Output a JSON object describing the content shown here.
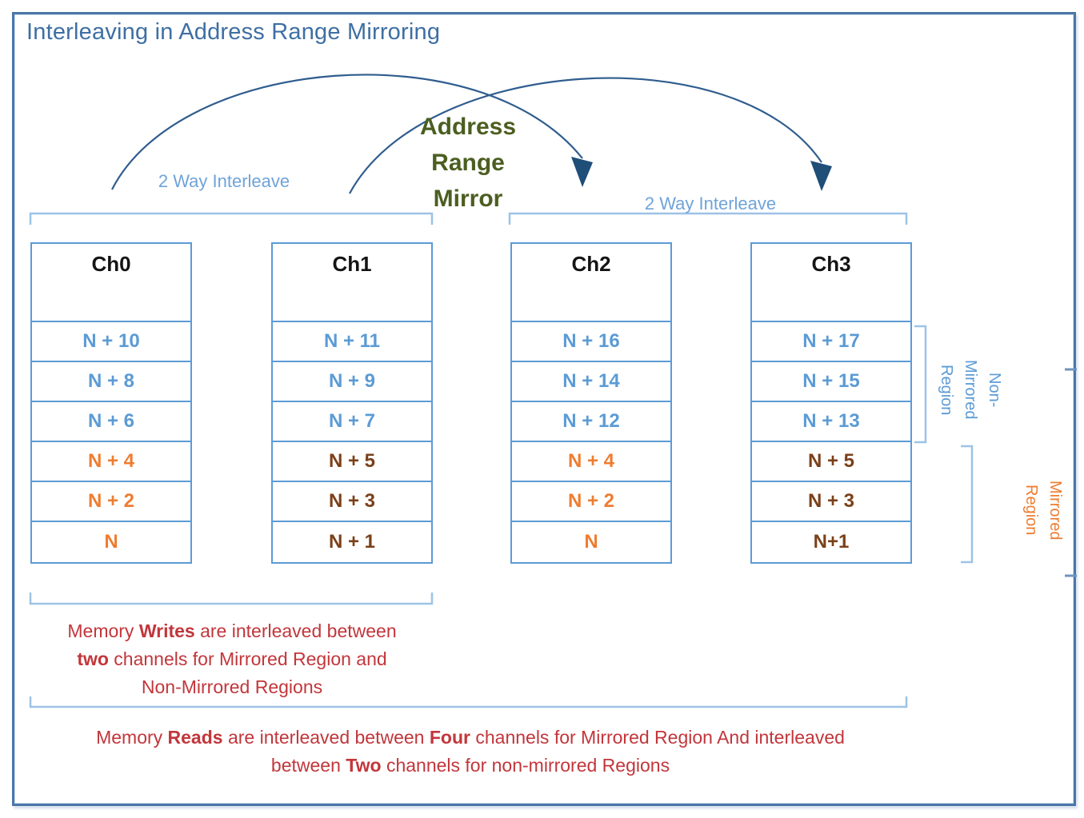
{
  "title": "Interleaving in Address Range Mirroring",
  "mirror_label": "Address\nRange\nMirror",
  "interleave_left": "2 Way Interleave",
  "interleave_right": "2 Way Interleave",
  "region_labels": {
    "non_mirrored": "Non-\nMirrored\nRegion",
    "mirrored": "Mirrored\nRegion"
  },
  "channels": [
    {
      "name": "Ch0",
      "cells": [
        "N + 10",
        "N + 8",
        "N + 6",
        "N + 4",
        "N + 2",
        "N"
      ]
    },
    {
      "name": "Ch1",
      "cells": [
        "N + 11",
        "N + 9",
        "N + 7",
        "N + 5",
        "N + 3",
        "N + 1"
      ]
    },
    {
      "name": "Ch2",
      "cells": [
        "N + 16",
        "N + 14",
        "N + 12",
        "N + 4",
        "N + 2",
        "N"
      ]
    },
    {
      "name": "Ch3",
      "cells": [
        "N + 17",
        "N + 15",
        "N + 13",
        "N + 5",
        "N + 3",
        "N+1"
      ]
    }
  ],
  "notes": {
    "writes": {
      "lines": [
        [
          [
            "Memory ",
            0
          ],
          [
            "Writes",
            1
          ],
          [
            " are interleaved between",
            0
          ]
        ],
        [
          [
            "two",
            1
          ],
          [
            " channels for Mirrored Region and",
            0
          ]
        ],
        [
          [
            "Non-Mirrored Regions",
            0
          ]
        ]
      ]
    },
    "reads": {
      "lines": [
        [
          [
            "Memory ",
            0
          ],
          [
            "Reads",
            1
          ],
          [
            " are interleaved between ",
            0
          ],
          [
            "Four",
            1
          ],
          [
            " channels for Mirrored Region And interleaved",
            0
          ]
        ],
        [
          [
            "between ",
            0
          ],
          [
            "Two",
            1
          ],
          [
            " channels for non-mirrored Regions",
            0
          ]
        ]
      ]
    }
  },
  "colors": {
    "title_blue": "#3e6fa3",
    "light_blue_label": "#6fa3d9",
    "cell_border_blue": "#5b9bd5",
    "cell_text_blue": "#5b9bd5",
    "cell_text_orange": "#ed7d31",
    "cell_text_brown": "#7b4019",
    "mirror_green": "#4b5e20",
    "note_red": "#c2363b",
    "bracket_blue": "#9dc3e6",
    "arrow_blue": "#2f5d8e",
    "outer_border_blue": "#4a76a8"
  }
}
